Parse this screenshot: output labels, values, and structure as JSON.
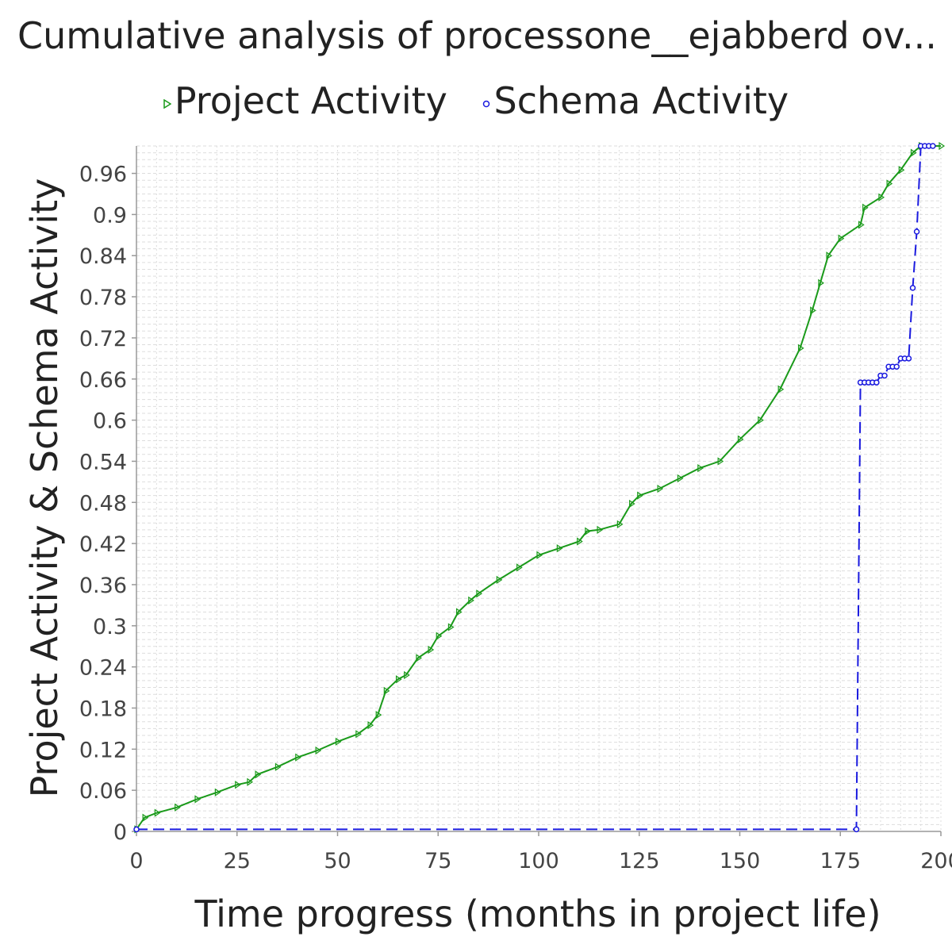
{
  "chart_data": {
    "type": "line",
    "title": "Cumulative analysis of processone__ejabberd ov...",
    "xlabel": "Time progress (months in project life)",
    "ylabel": "Project Activity & Schema Activity",
    "xlim": [
      0,
      200
    ],
    "ylim": [
      0,
      1.0
    ],
    "x_ticks": [
      "0",
      "25",
      "50",
      "75",
      "100",
      "125",
      "150",
      "175",
      "200"
    ],
    "y_ticks": [
      "0",
      "0.06",
      "0.12",
      "0.18",
      "0.24",
      "0.3",
      "0.36",
      "0.42",
      "0.48",
      "0.54",
      "0.6",
      "0.66",
      "0.72",
      "0.78",
      "0.84",
      "0.9",
      "0.96"
    ],
    "grid": true,
    "legend_position": "top-center",
    "series": [
      {
        "name": "Project Activity",
        "color": "#1a9a1a",
        "marker": "triangle-right",
        "line_style": "solid",
        "points": [
          [
            0,
            0.003
          ],
          [
            2,
            0.02
          ],
          [
            5,
            0.027
          ],
          [
            10,
            0.035
          ],
          [
            15,
            0.047
          ],
          [
            20,
            0.057
          ],
          [
            25,
            0.068
          ],
          [
            28,
            0.072
          ],
          [
            30,
            0.083
          ],
          [
            35,
            0.094
          ],
          [
            40,
            0.108
          ],
          [
            45,
            0.118
          ],
          [
            50,
            0.131
          ],
          [
            55,
            0.142
          ],
          [
            58,
            0.155
          ],
          [
            60,
            0.17
          ],
          [
            62,
            0.205
          ],
          [
            65,
            0.222
          ],
          [
            67,
            0.228
          ],
          [
            70,
            0.253
          ],
          [
            73,
            0.265
          ],
          [
            75,
            0.285
          ],
          [
            78,
            0.298
          ],
          [
            80,
            0.32
          ],
          [
            83,
            0.337
          ],
          [
            85,
            0.347
          ],
          [
            90,
            0.367
          ],
          [
            95,
            0.385
          ],
          [
            100,
            0.403
          ],
          [
            105,
            0.413
          ],
          [
            110,
            0.423
          ],
          [
            112,
            0.438
          ],
          [
            115,
            0.44
          ],
          [
            120,
            0.448
          ],
          [
            123,
            0.478
          ],
          [
            125,
            0.49
          ],
          [
            130,
            0.5
          ],
          [
            135,
            0.515
          ],
          [
            140,
            0.53
          ],
          [
            145,
            0.54
          ],
          [
            150,
            0.572
          ],
          [
            155,
            0.6
          ],
          [
            160,
            0.645
          ],
          [
            165,
            0.705
          ],
          [
            168,
            0.76
          ],
          [
            170,
            0.8
          ],
          [
            172,
            0.84
          ],
          [
            175,
            0.865
          ],
          [
            180,
            0.885
          ],
          [
            181,
            0.91
          ],
          [
            185,
            0.925
          ],
          [
            187,
            0.945
          ],
          [
            190,
            0.965
          ],
          [
            193,
            0.99
          ],
          [
            195,
            1.0
          ],
          [
            200,
            1.0
          ]
        ]
      },
      {
        "name": "Schema Activity",
        "color": "#1a1adf",
        "marker": "circle",
        "line_style": "dashed",
        "points": [
          [
            0,
            0.003
          ],
          [
            179,
            0.003
          ],
          [
            180,
            0.655
          ],
          [
            181,
            0.655
          ],
          [
            182,
            0.655
          ],
          [
            183,
            0.655
          ],
          [
            184,
            0.655
          ],
          [
            185,
            0.665
          ],
          [
            186,
            0.665
          ],
          [
            187,
            0.678
          ],
          [
            188,
            0.678
          ],
          [
            189,
            0.678
          ],
          [
            190,
            0.69
          ],
          [
            191,
            0.69
          ],
          [
            192,
            0.69
          ],
          [
            193,
            0.793
          ],
          [
            194,
            0.875
          ],
          [
            195,
            1.0
          ],
          [
            196,
            1.0
          ],
          [
            197,
            1.0
          ],
          [
            198,
            1.0
          ]
        ]
      }
    ]
  }
}
